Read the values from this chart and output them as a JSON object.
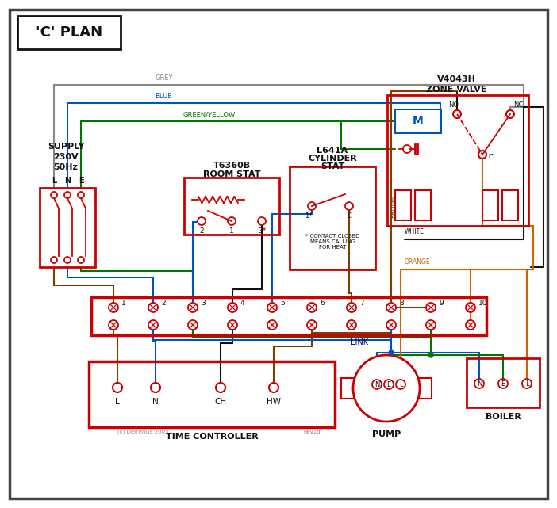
{
  "title": "'C' PLAN",
  "bg": "#ffffff",
  "red": "#cc0000",
  "blue": "#0055bb",
  "green": "#007700",
  "grey": "#888888",
  "brown": "#7B3F00",
  "orange": "#cc6600",
  "black": "#111111",
  "dkblue": "#000066",
  "zone_valve": "V4043H\nZONE VALVE",
  "room_stat_line1": "T6360B",
  "room_stat_line2": "ROOM STAT",
  "cyl_stat_line1": "L641A",
  "cyl_stat_line2": "CYLINDER",
  "cyl_stat_line3": "STAT",
  "tc_label": "TIME CONTROLLER",
  "pump_label": "PUMP",
  "boiler_label": "BOILER",
  "tc_terms": [
    "L",
    "N",
    "CH",
    "HW"
  ],
  "lne_labels": [
    "L",
    "N",
    "E"
  ],
  "supply_lines": [
    "SUPPLY",
    "230V",
    "50Hz"
  ],
  "contact_note": "* CONTACT CLOSED\nMEANS CALLING\nFOR HEAT",
  "footnote1": "(c) DerrenGs 2005",
  "footnote2": "Rev1d",
  "grey_label": "GREY",
  "blue_label": "BLUE",
  "gy_label": "GREEN/YELLOW",
  "brown_label": "BROWN",
  "white_label": "WHITE",
  "orange_label": "ORANGE",
  "link_label": "LINK"
}
